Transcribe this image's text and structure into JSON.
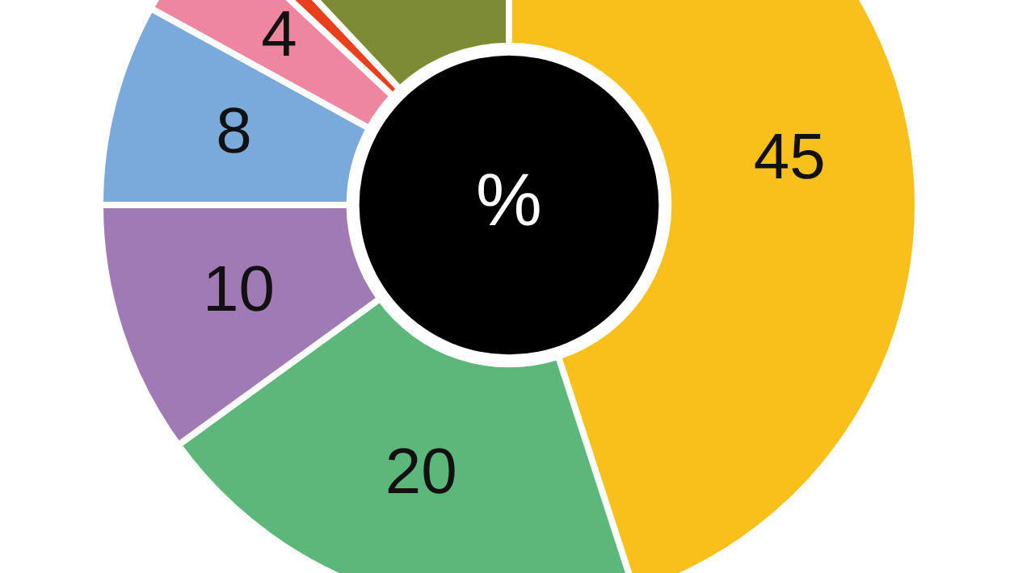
{
  "chart_data": {
    "type": "donut",
    "title": "%",
    "categories": [
      null,
      null,
      null,
      null,
      null,
      null,
      null
    ],
    "values": [
      45,
      20,
      10,
      8,
      4,
      1,
      12
    ],
    "value_labels": [
      "45",
      "20",
      "10",
      "8",
      "4",
      null,
      null
    ],
    "colors": [
      "#f9c01c",
      "#5bb87a",
      "#a07ab5",
      "#7aaadc",
      "#ef86a0",
      "#e8401c",
      "#7d8b35"
    ],
    "legend": false
  }
}
